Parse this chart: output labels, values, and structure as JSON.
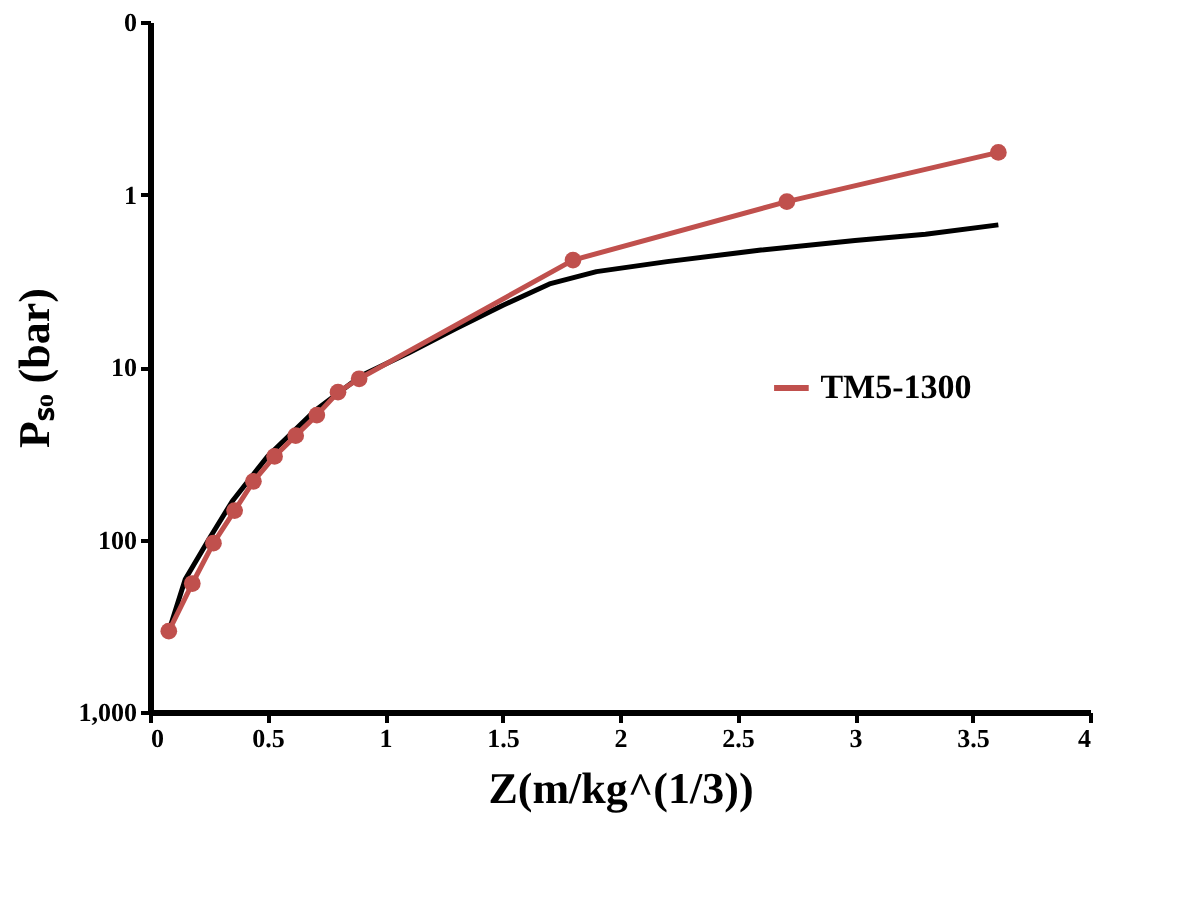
{
  "chart_data": {
    "type": "line",
    "xlabel": "Z(m/kg^(1/3))",
    "ylabel": "Pₛₒ (bar)",
    "xlim": [
      0,
      4
    ],
    "xticks": [
      0,
      0.5,
      1,
      1.5,
      2,
      2.5,
      3,
      3.5,
      4
    ],
    "ylim": [
      1000,
      0.1
    ],
    "yticks": [
      {
        "value": 0.1,
        "label": "0"
      },
      1,
      10,
      100,
      {
        "value": 1000,
        "label": "1,000"
      }
    ],
    "log": "y",
    "grid": false,
    "legend": "right",
    "series": [
      {
        "color": "#000000",
        "marker": "none",
        "x": [
          0.08,
          0.15,
          0.25,
          0.35,
          0.5,
          0.7,
          0.9,
          1.1,
          1.3,
          1.5,
          1.7,
          1.9,
          2.2,
          2.6,
          3.0,
          3.3,
          3.61
        ],
        "values": [
          340,
          170,
          100,
          60,
          33,
          18,
          11.2,
          8.3,
          6.0,
          4.4,
          3.3,
          2.8,
          2.45,
          2.1,
          1.85,
          1.7,
          1.5
        ]
      },
      {
        "name": "TM5-1300",
        "color": "#c0504d",
        "marker": "circle",
        "x": [
          0.08,
          0.18,
          0.27,
          0.36,
          0.44,
          0.53,
          0.62,
          0.71,
          0.8,
          0.89,
          1.8,
          2.71,
          3.61
        ],
        "values": [
          340,
          180,
          105,
          68,
          46,
          33,
          25,
          19,
          14,
          11.7,
          2.4,
          1.1,
          0.57
        ]
      }
    ]
  }
}
